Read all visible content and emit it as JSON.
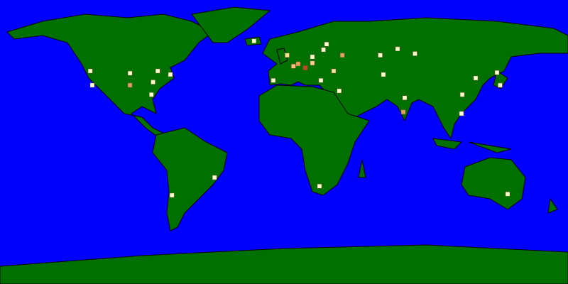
{
  "projection": "equirectangular",
  "ocean_color": "#0000ff",
  "land_color": "#007000",
  "markers": [
    {
      "lat": 45,
      "lon": -122.8,
      "color": "#ffffd0"
    },
    {
      "lat": 36,
      "lon": -121.5,
      "color": "#ffffd0"
    },
    {
      "lat": 43.6,
      "lon": -97.6,
      "color": "#ffffd0"
    },
    {
      "lat": 36,
      "lon": -97.6,
      "color": "#e0a060"
    },
    {
      "lat": 38,
      "lon": -83,
      "color": "#ffffd0"
    },
    {
      "lat": 45,
      "lon": -80,
      "color": "#ffffd0"
    },
    {
      "lat": 42.75,
      "lon": -72,
      "color": "#ffffd0"
    },
    {
      "lat": 30,
      "lon": -84,
      "color": "#ffffd0"
    },
    {
      "lat": -22.5,
      "lon": -44,
      "color": "#ffffd0"
    },
    {
      "lat": -33.75,
      "lon": -71,
      "color": "#ffffd0"
    },
    {
      "lat": 64,
      "lon": -19,
      "color": "#ffffd0"
    },
    {
      "lat": 55,
      "lon": 2,
      "color": "#ffe090"
    },
    {
      "lat": 49.5,
      "lon": 9,
      "color": "#f0a050"
    },
    {
      "lat": 47,
      "lon": 13.5,
      "color": "#d04020"
    },
    {
      "lat": 48,
      "lon": 6,
      "color": "#ffc080"
    },
    {
      "lat": 50,
      "lon": 18,
      "color": "#ffd090"
    },
    {
      "lat": 54,
      "lon": 18,
      "color": "#ffffd0"
    },
    {
      "lat": 58.5,
      "lon": 25,
      "color": "#ffffd0"
    },
    {
      "lat": 62,
      "lon": 27,
      "color": "#ffffd0"
    },
    {
      "lat": 45,
      "lon": 31.5,
      "color": "#ffe0a0"
    },
    {
      "lat": 39,
      "lon": -6.75,
      "color": "#ffffd0"
    },
    {
      "lat": 39,
      "lon": 23.4,
      "color": "#ffffd0"
    },
    {
      "lat": 32.4,
      "lon": 35,
      "color": "#ffffd0"
    },
    {
      "lat": 55,
      "lon": 37,
      "color": "#e0a060"
    },
    {
      "lat": 55,
      "lon": 61,
      "color": "#ffffd0"
    },
    {
      "lat": 56,
      "lon": 83,
      "color": "#ffffd0"
    },
    {
      "lat": 42.75,
      "lon": 63,
      "color": "#ffffd0"
    },
    {
      "lat": 59,
      "lon": 72,
      "color": "#ffffd0"
    },
    {
      "lat": 28,
      "lon": 76.5,
      "color": "#ffffd0"
    },
    {
      "lat": 19,
      "lon": 75.6,
      "color": "#e0a060"
    },
    {
      "lat": 30,
      "lon": 113,
      "color": "#ffffd0"
    },
    {
      "lat": 40.5,
      "lon": 121.5,
      "color": "#ffffd0"
    },
    {
      "lat": 36,
      "lon": 137,
      "color": "#ffffd0"
    },
    {
      "lat": 44,
      "lon": 135,
      "color": "#ffffd0"
    },
    {
      "lat": 18,
      "lon": 112.5,
      "color": "#ffffd0"
    },
    {
      "lat": -28,
      "lon": 22.5,
      "color": "#ffffd0"
    },
    {
      "lat": -33,
      "lon": 141.75,
      "color": "#ffffd0"
    }
  ]
}
